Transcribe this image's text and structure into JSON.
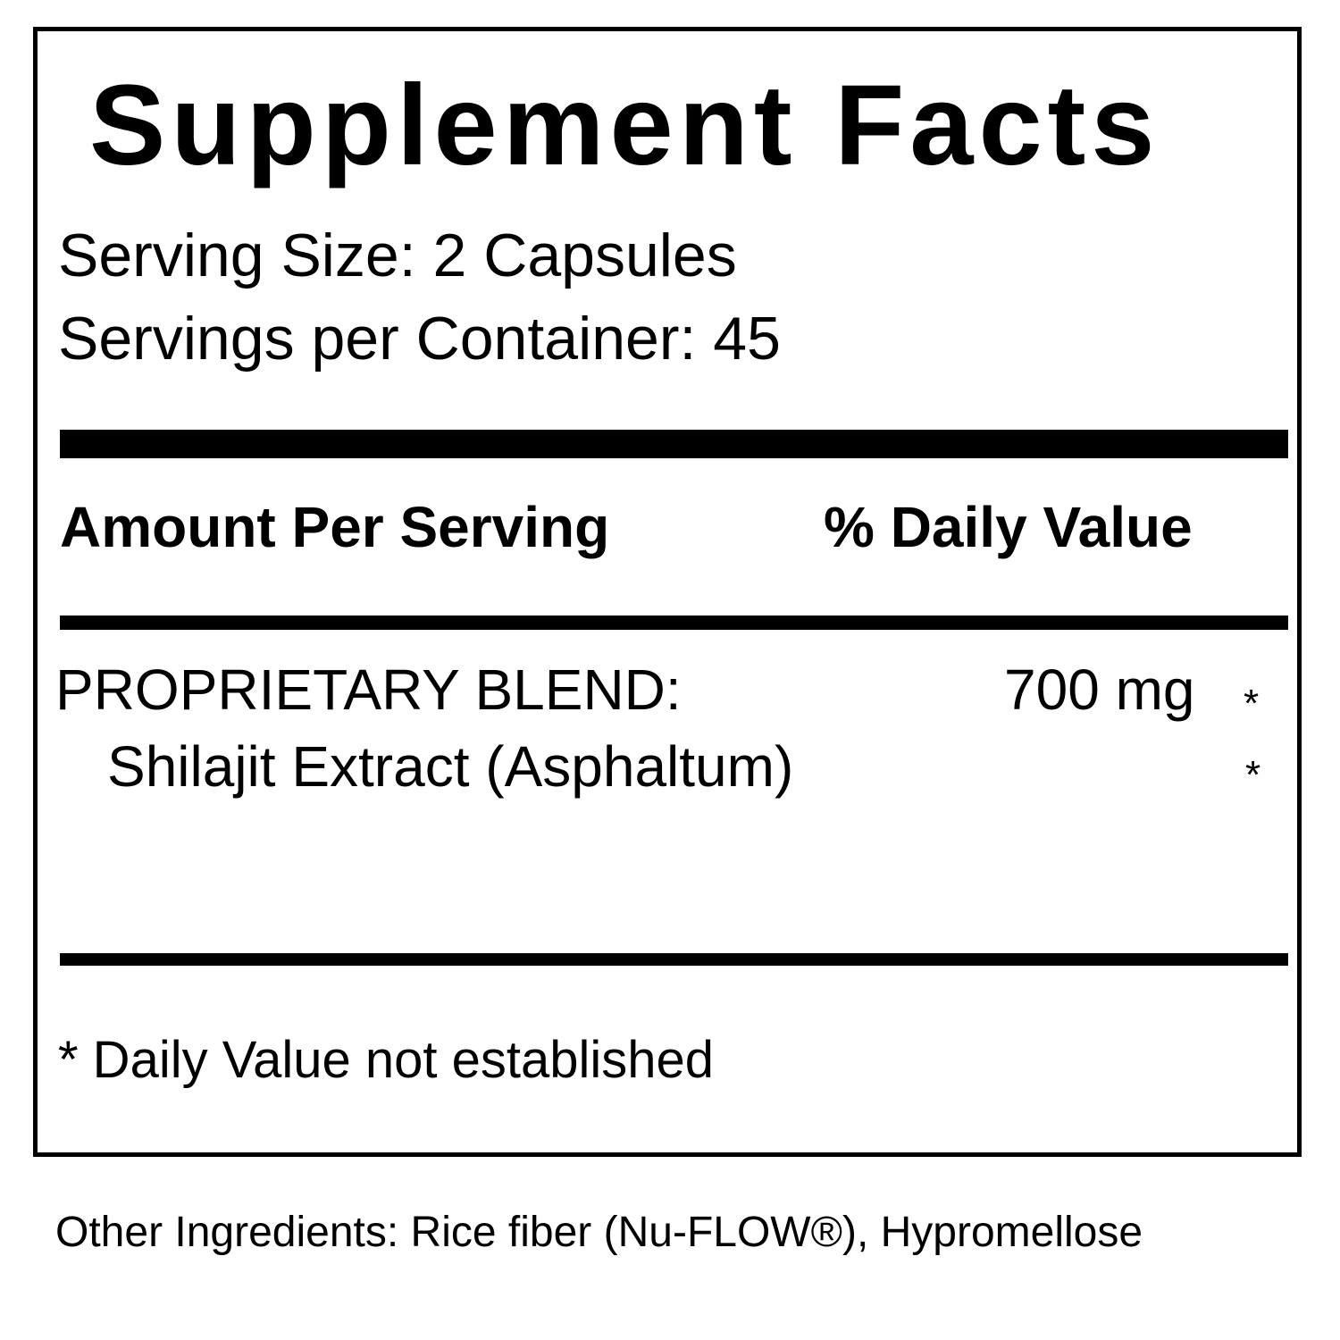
{
  "title": "Supplement Facts",
  "serving_size": "Serving Size: 2 Capsules",
  "servings_per_container": "Servings per Container: 45",
  "header": {
    "amount": "Amount Per Serving",
    "daily_value": "% Daily Value"
  },
  "rows": [
    {
      "name": "PROPRIETARY BLEND:",
      "amount": "700 mg",
      "dv": "*"
    },
    {
      "name": "Shilajit Extract (Asphaltum)",
      "amount": "",
      "dv": "*"
    }
  ],
  "footnote": "* Daily Value not established",
  "other_ingredients": "Other Ingredients: Rice fiber (Nu-FLOW®), Hypromellose"
}
